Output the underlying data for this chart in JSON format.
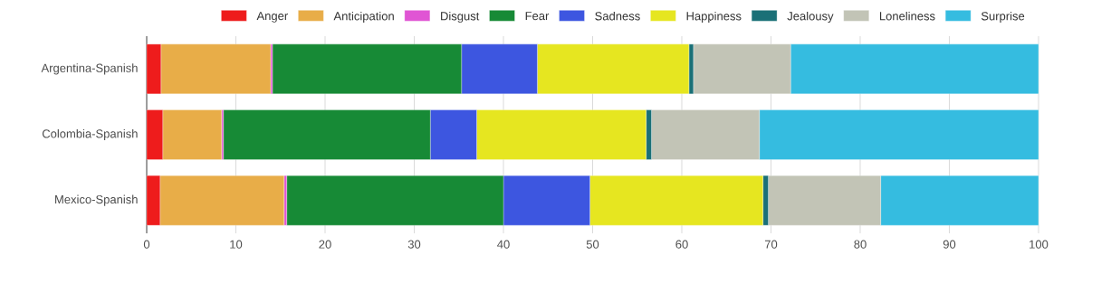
{
  "chart_data": {
    "type": "bar",
    "orientation": "horizontal",
    "stacked": true,
    "categories": [
      "Argentina-Spanish",
      "Colombia-Spanish",
      "Mexico-Spanish"
    ],
    "series": [
      {
        "name": "Anger",
        "color": "#ee1c1c",
        "values": [
          1.6,
          1.8,
          1.5
        ]
      },
      {
        "name": "Anticipation",
        "color": "#e8ad48",
        "values": [
          12.3,
          6.6,
          13.9
        ]
      },
      {
        "name": "Disgust",
        "color": "#e055d4",
        "values": [
          0.2,
          0.2,
          0.3
        ]
      },
      {
        "name": "Fear",
        "color": "#178a36",
        "values": [
          21.2,
          23.2,
          24.3
        ]
      },
      {
        "name": "Sadness",
        "color": "#3d56e0",
        "values": [
          8.5,
          5.2,
          9.7
        ]
      },
      {
        "name": "Happiness",
        "color": "#e6e620",
        "values": [
          17.0,
          19.0,
          19.4
        ]
      },
      {
        "name": "Jealousy",
        "color": "#1a7077",
        "values": [
          0.5,
          0.6,
          0.6
        ]
      },
      {
        "name": "Loneliness",
        "color": "#c2c4b6",
        "values": [
          10.9,
          12.1,
          12.6
        ]
      },
      {
        "name": "Surprise",
        "color": "#35bce0",
        "values": [
          27.8,
          31.3,
          17.7
        ]
      }
    ],
    "xlim": [
      0,
      100
    ],
    "xticks": [
      0,
      10,
      20,
      30,
      40,
      50,
      60,
      70,
      80,
      90,
      100
    ],
    "grid": "x",
    "legend": "top"
  }
}
